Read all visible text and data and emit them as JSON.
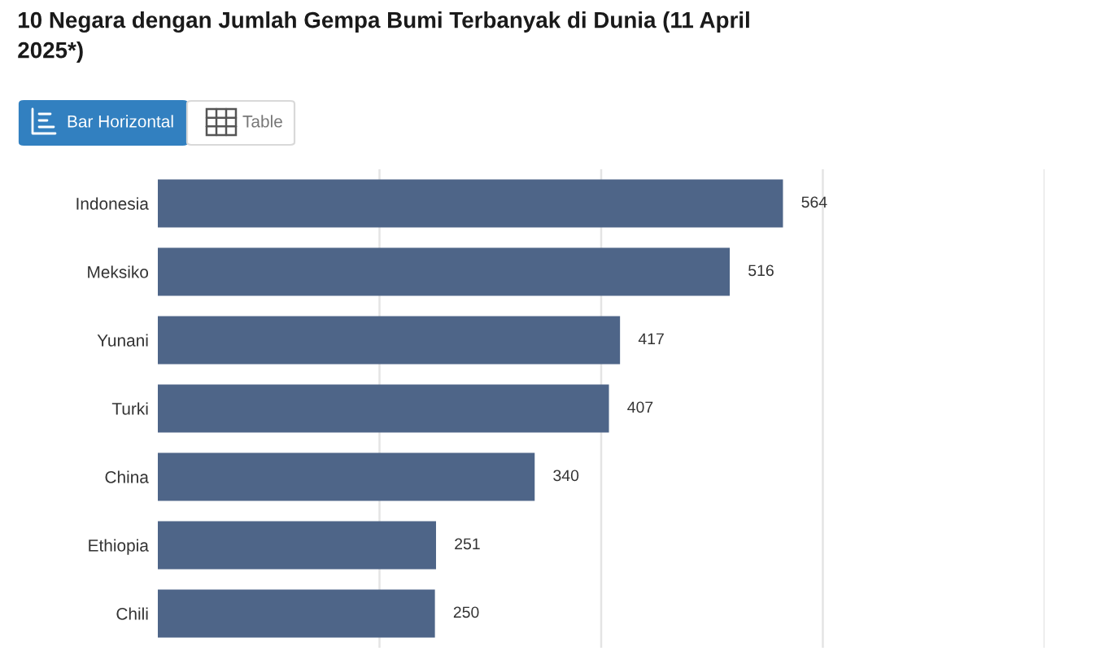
{
  "chart_data": {
    "type": "bar",
    "orientation": "horizontal",
    "title": "10 Negara dengan Jumlah Gempa Bumi Terbanyak di Dunia (11 April 2025*)",
    "annotations": [
      "Bar Horizontal",
      "Table"
    ],
    "categories": [
      "Indonesia",
      "Meksiko",
      "Yunani",
      "Turki",
      "China",
      "Ethiopia",
      "Chili"
    ],
    "values": [
      564,
      516,
      417,
      407,
      340,
      251,
      250
    ],
    "color": "#4e6588",
    "xlim": [
      0,
      800
    ],
    "xticks": [
      {
        "value": 200,
        "label": null
      },
      {
        "value": 400,
        "label": null
      },
      {
        "value": 600,
        "label": null
      },
      {
        "value": 800,
        "label": null
      }
    ],
    "tick_labels": "y",
    "grid": "x",
    "data_labels": true
  }
}
